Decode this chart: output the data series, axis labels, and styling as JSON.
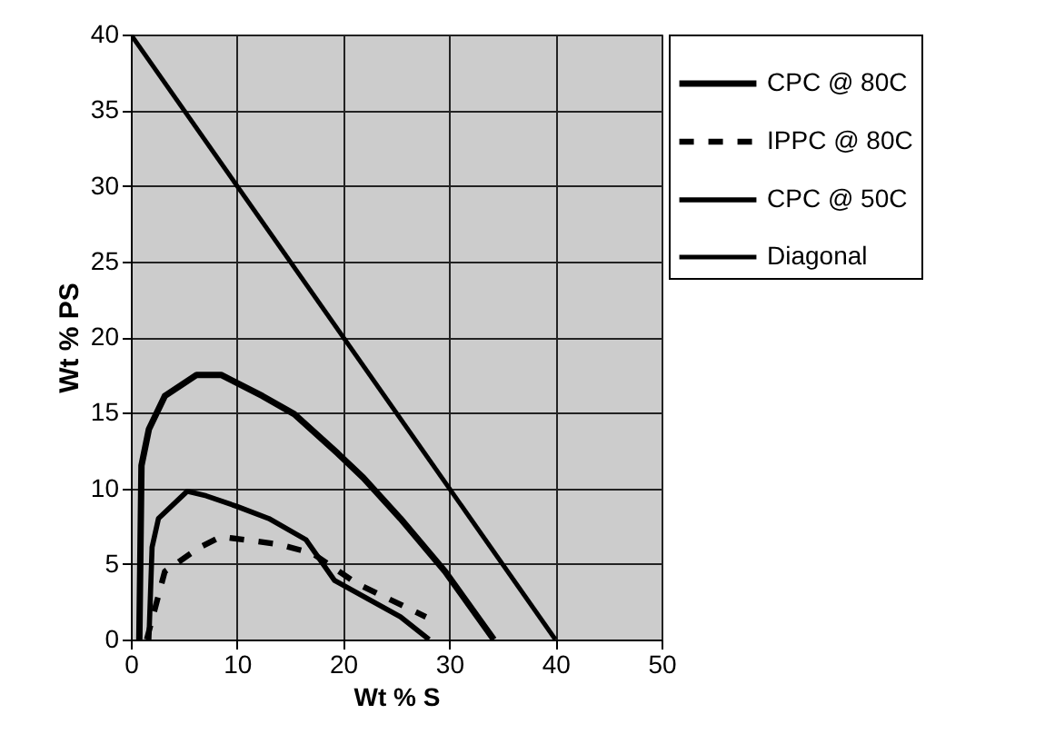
{
  "chart_data": {
    "type": "line",
    "xlabel": "Wt % S",
    "ylabel": "Wt % PS",
    "xlim": [
      0,
      50
    ],
    "xticks": [
      0,
      10,
      20,
      30,
      40,
      50
    ],
    "ylim": [
      0,
      40
    ],
    "yticks": [
      0,
      5,
      10,
      15,
      20,
      25,
      30,
      35,
      40
    ],
    "grid": true,
    "legend": "right",
    "marker": "none",
    "series": [
      {
        "name": "CPC @ 80C",
        "color": "#000000",
        "line_style": "solid",
        "x": [
          0.8,
          1.0,
          1.7,
          3.2,
          6.2,
          8.5,
          12.4,
          15.4,
          19.5,
          21.9,
          25.4,
          29.6,
          34.2
        ],
        "values": [
          0,
          11.5,
          13.9,
          16.1,
          17.5,
          17.5,
          16.1,
          14.9,
          12.3,
          10.7,
          8.0,
          4.5,
          0
        ]
      },
      {
        "name": "IPPC @ 80C",
        "color": "#000000",
        "line_style": "dashed",
        "x": [
          1.5,
          3.2,
          6.5,
          8.5,
          13.9,
          17.1,
          21.3,
          27.8
        ],
        "values": [
          0,
          4.5,
          6.1,
          6.8,
          6.3,
          5.7,
          3.7,
          1.5
        ]
      },
      {
        "name": "CPC @ 50C",
        "color": "#000000",
        "line_style": "solid",
        "x": [
          1.7,
          2.0,
          2.6,
          5.3,
          7.1,
          10,
          13,
          16.5,
          19.2,
          25.4,
          28.1
        ],
        "values": [
          0,
          6.1,
          8.0,
          9.8,
          9.5,
          8.8,
          8.0,
          6.6,
          3.9,
          1.5,
          0
        ]
      },
      {
        "name": "Diagonal",
        "color": "#000000",
        "line_style": "solid",
        "x": [
          0,
          40
        ],
        "values": [
          40,
          0
        ]
      }
    ]
  }
}
